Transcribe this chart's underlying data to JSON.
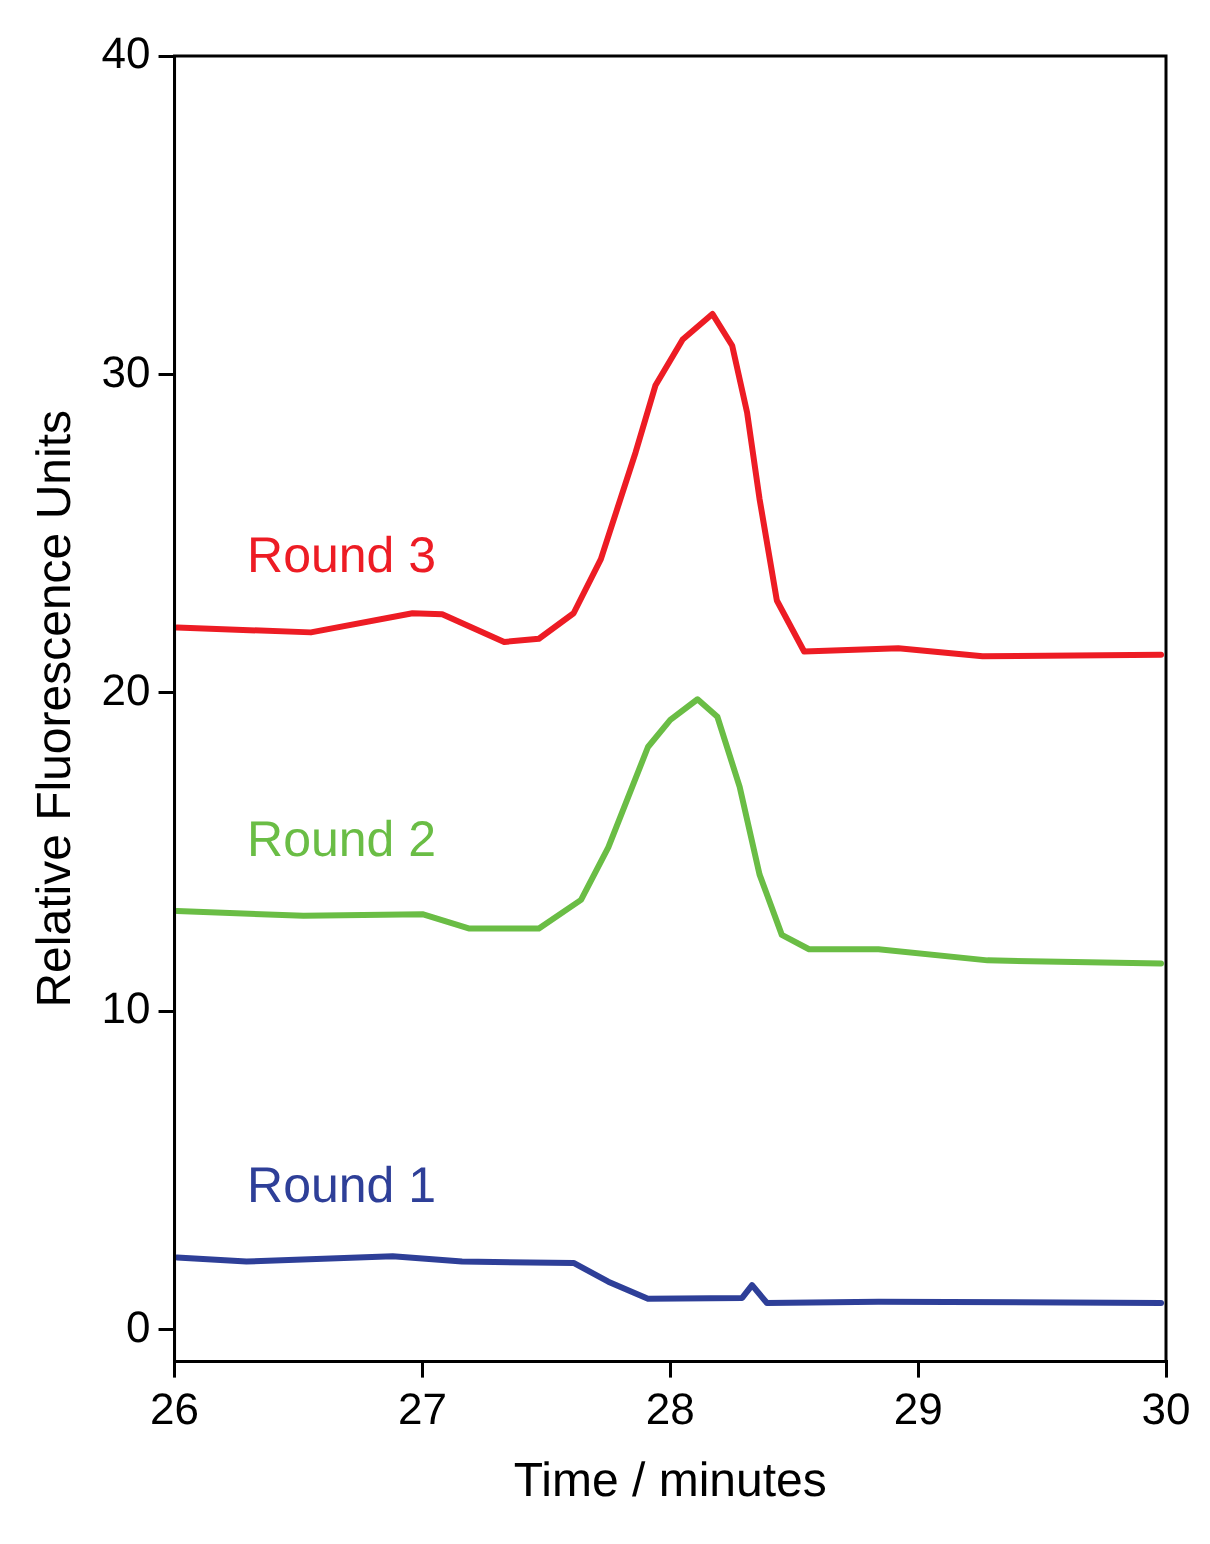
{
  "chart_data": {
    "type": "line",
    "xlabel": "Time / minutes",
    "ylabel": "Relative Fluorescence Units",
    "xlim": [
      26,
      30
    ],
    "xticks": [
      26,
      27,
      28,
      29,
      30
    ],
    "ylim": [
      -1,
      40
    ],
    "yticks": [
      0,
      10,
      20,
      30,
      40
    ],
    "grid": false,
    "legend": false,
    "marker": "none",
    "line_style": "solid",
    "series": [
      {
        "name": "Round 3",
        "color": "#ed1c24",
        "x": [
          26.01,
          26.55,
          26.96,
          27.08,
          27.33,
          27.47,
          27.61,
          27.72,
          27.86,
          27.94,
          28.05,
          28.17,
          28.25,
          28.31,
          28.36,
          28.43,
          28.54,
          28.92,
          29.26,
          29.98
        ],
        "values": [
          22.05,
          21.9,
          22.5,
          22.47,
          21.6,
          21.7,
          22.5,
          24.2,
          27.55,
          29.65,
          31.1,
          31.9,
          30.9,
          28.8,
          26.1,
          22.9,
          21.3,
          21.4,
          21.15,
          21.2
        ]
      },
      {
        "name": "Round 2",
        "color": "#6abd45",
        "x": [
          26.01,
          26.52,
          27.0,
          27.19,
          27.47,
          27.64,
          27.75,
          27.91,
          28.0,
          28.11,
          28.19,
          28.28,
          28.36,
          28.45,
          28.56,
          28.84,
          29.28,
          29.98
        ],
        "values": [
          13.15,
          13.0,
          13.05,
          12.6,
          12.6,
          13.5,
          15.15,
          18.3,
          19.15,
          19.8,
          19.25,
          17.05,
          14.3,
          12.4,
          11.95,
          11.95,
          11.6,
          11.5
        ]
      },
      {
        "name": "Round 1",
        "color": "#2e3f98",
        "x": [
          26.01,
          26.29,
          26.88,
          27.16,
          27.61,
          27.75,
          27.91,
          28.29,
          28.33,
          28.39,
          28.84,
          29.98
        ],
        "values": [
          2.27,
          2.14,
          2.31,
          2.14,
          2.1,
          1.51,
          0.97,
          1.0,
          1.4,
          0.84,
          0.88,
          0.84
        ]
      }
    ]
  }
}
